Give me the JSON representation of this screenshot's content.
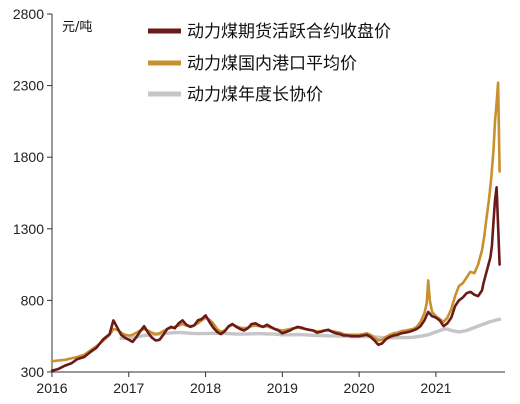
{
  "chart_data": {
    "type": "line",
    "unit_label": "元/吨",
    "xlim": [
      2016.0,
      2021.9
    ],
    "ylim": [
      300,
      2800
    ],
    "y_ticks": [
      300,
      800,
      1300,
      1800,
      2300,
      2800
    ],
    "x_ticks": [
      2016,
      2017,
      2018,
      2019,
      2020,
      2021
    ],
    "x_tick_labels": [
      "2016",
      "2017",
      "2018",
      "2019",
      "2020",
      "2021"
    ],
    "legend_position": "top",
    "grid": false,
    "series": [
      {
        "name": "动力煤期货活跃合约收盘价",
        "color": "#6b1a1a",
        "width": 2.6,
        "points": [
          [
            2016.0,
            310
          ],
          [
            2016.08,
            320
          ],
          [
            2016.17,
            345
          ],
          [
            2016.25,
            360
          ],
          [
            2016.33,
            390
          ],
          [
            2016.42,
            405
          ],
          [
            2016.5,
            440
          ],
          [
            2016.58,
            470
          ],
          [
            2016.67,
            530
          ],
          [
            2016.75,
            565
          ],
          [
            2016.8,
            660
          ],
          [
            2016.85,
            610
          ],
          [
            2016.9,
            560
          ],
          [
            2016.95,
            540
          ],
          [
            2017.0,
            525
          ],
          [
            2017.05,
            510
          ],
          [
            2017.1,
            545
          ],
          [
            2017.15,
            585
          ],
          [
            2017.2,
            620
          ],
          [
            2017.25,
            575
          ],
          [
            2017.3,
            540
          ],
          [
            2017.35,
            520
          ],
          [
            2017.4,
            525
          ],
          [
            2017.45,
            560
          ],
          [
            2017.5,
            600
          ],
          [
            2017.55,
            615
          ],
          [
            2017.6,
            605
          ],
          [
            2017.65,
            640
          ],
          [
            2017.7,
            660
          ],
          [
            2017.75,
            630
          ],
          [
            2017.8,
            615
          ],
          [
            2017.85,
            625
          ],
          [
            2017.9,
            660
          ],
          [
            2017.95,
            670
          ],
          [
            2018.0,
            695
          ],
          [
            2018.05,
            650
          ],
          [
            2018.1,
            610
          ],
          [
            2018.15,
            580
          ],
          [
            2018.2,
            565
          ],
          [
            2018.25,
            585
          ],
          [
            2018.3,
            620
          ],
          [
            2018.35,
            635
          ],
          [
            2018.4,
            615
          ],
          [
            2018.45,
            600
          ],
          [
            2018.5,
            590
          ],
          [
            2018.55,
            605
          ],
          [
            2018.6,
            635
          ],
          [
            2018.65,
            640
          ],
          [
            2018.7,
            625
          ],
          [
            2018.75,
            615
          ],
          [
            2018.8,
            630
          ],
          [
            2018.85,
            615
          ],
          [
            2018.9,
            600
          ],
          [
            2018.95,
            590
          ],
          [
            2019.0,
            570
          ],
          [
            2019.05,
            580
          ],
          [
            2019.1,
            590
          ],
          [
            2019.15,
            605
          ],
          [
            2019.2,
            615
          ],
          [
            2019.25,
            610
          ],
          [
            2019.3,
            600
          ],
          [
            2019.35,
            595
          ],
          [
            2019.4,
            590
          ],
          [
            2019.45,
            575
          ],
          [
            2019.5,
            580
          ],
          [
            2019.55,
            590
          ],
          [
            2019.6,
            595
          ],
          [
            2019.65,
            580
          ],
          [
            2019.7,
            570
          ],
          [
            2019.75,
            565
          ],
          [
            2019.8,
            555
          ],
          [
            2019.85,
            555
          ],
          [
            2019.9,
            550
          ],
          [
            2019.95,
            550
          ],
          [
            2020.0,
            550
          ],
          [
            2020.05,
            555
          ],
          [
            2020.1,
            560
          ],
          [
            2020.15,
            545
          ],
          [
            2020.2,
            520
          ],
          [
            2020.25,
            490
          ],
          [
            2020.3,
            500
          ],
          [
            2020.35,
            530
          ],
          [
            2020.4,
            545
          ],
          [
            2020.45,
            555
          ],
          [
            2020.5,
            560
          ],
          [
            2020.55,
            570
          ],
          [
            2020.6,
            575
          ],
          [
            2020.65,
            580
          ],
          [
            2020.7,
            590
          ],
          [
            2020.75,
            600
          ],
          [
            2020.8,
            620
          ],
          [
            2020.85,
            660
          ],
          [
            2020.9,
            720
          ],
          [
            2020.95,
            690
          ],
          [
            2021.0,
            680
          ],
          [
            2021.05,
            660
          ],
          [
            2021.1,
            620
          ],
          [
            2021.15,
            640
          ],
          [
            2021.2,
            680
          ],
          [
            2021.25,
            760
          ],
          [
            2021.3,
            800
          ],
          [
            2021.35,
            820
          ],
          [
            2021.4,
            850
          ],
          [
            2021.45,
            860
          ],
          [
            2021.5,
            840
          ],
          [
            2021.55,
            830
          ],
          [
            2021.6,
            870
          ],
          [
            2021.62,
            920
          ],
          [
            2021.65,
            980
          ],
          [
            2021.68,
            1040
          ],
          [
            2021.71,
            1100
          ],
          [
            2021.73,
            1180
          ],
          [
            2021.75,
            1350
          ],
          [
            2021.77,
            1500
          ],
          [
            2021.79,
            1590
          ],
          [
            2021.81,
            1320
          ],
          [
            2021.83,
            1050
          ]
        ]
      },
      {
        "name": "动力煤国内港口平均价",
        "color": "#c8902e",
        "width": 2.6,
        "points": [
          [
            2016.0,
            375
          ],
          [
            2016.08,
            380
          ],
          [
            2016.17,
            385
          ],
          [
            2016.25,
            395
          ],
          [
            2016.33,
            405
          ],
          [
            2016.42,
            420
          ],
          [
            2016.5,
            450
          ],
          [
            2016.58,
            480
          ],
          [
            2016.67,
            520
          ],
          [
            2016.75,
            560
          ],
          [
            2016.8,
            600
          ],
          [
            2016.85,
            595
          ],
          [
            2016.9,
            575
          ],
          [
            2016.95,
            560
          ],
          [
            2017.0,
            555
          ],
          [
            2017.05,
            560
          ],
          [
            2017.1,
            575
          ],
          [
            2017.15,
            590
          ],
          [
            2017.2,
            600
          ],
          [
            2017.25,
            590
          ],
          [
            2017.3,
            575
          ],
          [
            2017.35,
            565
          ],
          [
            2017.4,
            570
          ],
          [
            2017.45,
            585
          ],
          [
            2017.5,
            600
          ],
          [
            2017.55,
            610
          ],
          [
            2017.6,
            615
          ],
          [
            2017.65,
            625
          ],
          [
            2017.7,
            635
          ],
          [
            2017.75,
            625
          ],
          [
            2017.8,
            620
          ],
          [
            2017.85,
            625
          ],
          [
            2017.9,
            640
          ],
          [
            2017.95,
            660
          ],
          [
            2018.0,
            680
          ],
          [
            2018.05,
            665
          ],
          [
            2018.1,
            640
          ],
          [
            2018.15,
            600
          ],
          [
            2018.2,
            580
          ],
          [
            2018.25,
            590
          ],
          [
            2018.3,
            615
          ],
          [
            2018.35,
            630
          ],
          [
            2018.4,
            620
          ],
          [
            2018.45,
            610
          ],
          [
            2018.5,
            605
          ],
          [
            2018.55,
            610
          ],
          [
            2018.6,
            620
          ],
          [
            2018.65,
            625
          ],
          [
            2018.7,
            620
          ],
          [
            2018.75,
            615
          ],
          [
            2018.8,
            620
          ],
          [
            2018.85,
            610
          ],
          [
            2018.9,
            600
          ],
          [
            2018.95,
            595
          ],
          [
            2019.0,
            590
          ],
          [
            2019.05,
            595
          ],
          [
            2019.1,
            600
          ],
          [
            2019.15,
            605
          ],
          [
            2019.2,
            610
          ],
          [
            2019.25,
            605
          ],
          [
            2019.3,
            600
          ],
          [
            2019.35,
            595
          ],
          [
            2019.4,
            590
          ],
          [
            2019.45,
            585
          ],
          [
            2019.5,
            585
          ],
          [
            2019.55,
            590
          ],
          [
            2019.6,
            590
          ],
          [
            2019.65,
            585
          ],
          [
            2019.7,
            580
          ],
          [
            2019.75,
            575
          ],
          [
            2019.8,
            565
          ],
          [
            2019.85,
            560
          ],
          [
            2019.9,
            560
          ],
          [
            2019.95,
            560
          ],
          [
            2020.0,
            560
          ],
          [
            2020.05,
            565
          ],
          [
            2020.1,
            570
          ],
          [
            2020.15,
            560
          ],
          [
            2020.2,
            540
          ],
          [
            2020.25,
            520
          ],
          [
            2020.3,
            525
          ],
          [
            2020.35,
            545
          ],
          [
            2020.4,
            560
          ],
          [
            2020.45,
            570
          ],
          [
            2020.5,
            575
          ],
          [
            2020.55,
            585
          ],
          [
            2020.6,
            590
          ],
          [
            2020.65,
            595
          ],
          [
            2020.7,
            600
          ],
          [
            2020.75,
            615
          ],
          [
            2020.8,
            650
          ],
          [
            2020.85,
            710
          ],
          [
            2020.88,
            780
          ],
          [
            2020.9,
            940
          ],
          [
            2020.92,
            800
          ],
          [
            2020.95,
            720
          ],
          [
            2021.0,
            690
          ],
          [
            2021.05,
            670
          ],
          [
            2021.1,
            650
          ],
          [
            2021.15,
            680
          ],
          [
            2021.2,
            740
          ],
          [
            2021.25,
            830
          ],
          [
            2021.3,
            900
          ],
          [
            2021.35,
            920
          ],
          [
            2021.4,
            960
          ],
          [
            2021.45,
            1000
          ],
          [
            2021.5,
            990
          ],
          [
            2021.55,
            1050
          ],
          [
            2021.6,
            1150
          ],
          [
            2021.63,
            1250
          ],
          [
            2021.66,
            1380
          ],
          [
            2021.69,
            1500
          ],
          [
            2021.72,
            1650
          ],
          [
            2021.75,
            1850
          ],
          [
            2021.77,
            2050
          ],
          [
            2021.79,
            2180
          ],
          [
            2021.81,
            2320
          ],
          [
            2021.83,
            1700
          ]
        ]
      },
      {
        "name": "动力煤年度长协价",
        "color": "#c6c6c6",
        "width": 3.4,
        "points": [
          [
            2016.9,
            535
          ],
          [
            2017.0,
            535
          ],
          [
            2017.1,
            545
          ],
          [
            2017.2,
            555
          ],
          [
            2017.3,
            560
          ],
          [
            2017.4,
            565
          ],
          [
            2017.5,
            570
          ],
          [
            2017.6,
            575
          ],
          [
            2017.7,
            575
          ],
          [
            2017.8,
            570
          ],
          [
            2017.9,
            568
          ],
          [
            2018.0,
            568
          ],
          [
            2018.1,
            570
          ],
          [
            2018.2,
            570
          ],
          [
            2018.3,
            568
          ],
          [
            2018.4,
            565
          ],
          [
            2018.5,
            565
          ],
          [
            2018.6,
            567
          ],
          [
            2018.7,
            568
          ],
          [
            2018.8,
            566
          ],
          [
            2018.9,
            565
          ],
          [
            2019.0,
            560
          ],
          [
            2019.1,
            560
          ],
          [
            2019.2,
            562
          ],
          [
            2019.3,
            560
          ],
          [
            2019.4,
            556
          ],
          [
            2019.5,
            555
          ],
          [
            2019.6,
            553
          ],
          [
            2019.7,
            552
          ],
          [
            2019.8,
            550
          ],
          [
            2019.9,
            548
          ],
          [
            2020.0,
            548
          ],
          [
            2020.1,
            548
          ],
          [
            2020.2,
            545
          ],
          [
            2020.3,
            540
          ],
          [
            2020.4,
            538
          ],
          [
            2020.5,
            540
          ],
          [
            2020.6,
            540
          ],
          [
            2020.7,
            542
          ],
          [
            2020.8,
            550
          ],
          [
            2020.9,
            560
          ],
          [
            2021.0,
            580
          ],
          [
            2021.1,
            598
          ],
          [
            2021.15,
            600
          ],
          [
            2021.2,
            590
          ],
          [
            2021.3,
            580
          ],
          [
            2021.4,
            590
          ],
          [
            2021.5,
            610
          ],
          [
            2021.6,
            630
          ],
          [
            2021.7,
            650
          ],
          [
            2021.8,
            665
          ],
          [
            2021.83,
            668
          ]
        ]
      }
    ]
  }
}
